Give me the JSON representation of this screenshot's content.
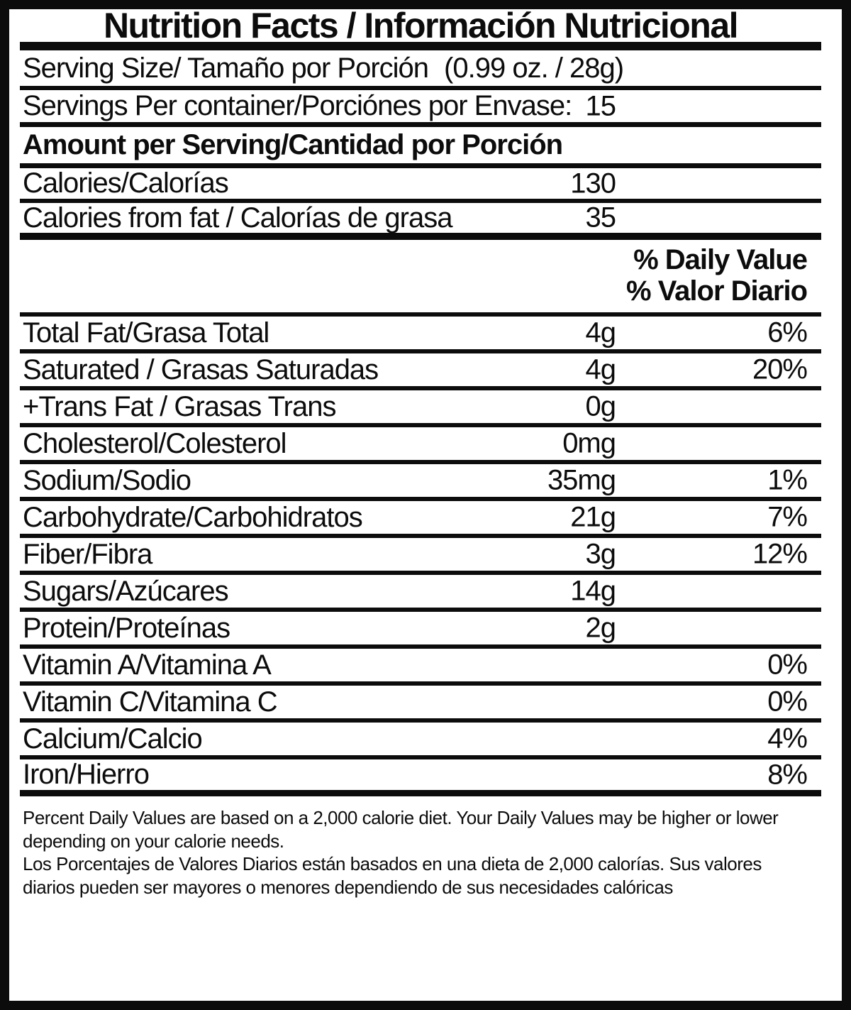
{
  "title": "Nutrition Facts / Información Nutricional",
  "serving": {
    "size_label": "Serving Size/ Tamaño por Porción",
    "size_value": "(0.99 oz. / 28g)",
    "per_container_label": "Servings Per container/Porciónes por Envase:",
    "per_container_value": "15"
  },
  "amount_per_serving_header": "Amount per Serving/Cantidad por Porción",
  "calories": {
    "label": "Calories/Calorías",
    "value": "130"
  },
  "calories_from_fat": {
    "label": "Calories from fat / Calorías de grasa",
    "value": "35"
  },
  "daily_value_header": {
    "line1": "% Daily Value",
    "line2": "% Valor Diario"
  },
  "nutrients": [
    {
      "label": "Total Fat/Grasa Total",
      "amount": "4g",
      "percent": "6%"
    },
    {
      "label": "Saturated / Grasas Saturadas",
      "amount": "4g",
      "percent": "20%"
    },
    {
      "label": "+Trans Fat / Grasas Trans",
      "amount": "0g",
      "percent": ""
    },
    {
      "label": "Cholesterol/Colesterol",
      "amount": "0mg",
      "percent": ""
    },
    {
      "label": "Sodium/Sodio",
      "amount": "35mg",
      "percent": "1%"
    },
    {
      "label": "Carbohydrate/Carbohidratos",
      "amount": "21g",
      "percent": "7%"
    },
    {
      "label": "Fiber/Fibra",
      "amount": "3g",
      "percent": "12%"
    },
    {
      "label": "Sugars/Azúcares",
      "amount": "14g",
      "percent": ""
    },
    {
      "label": "Protein/Proteínas",
      "amount": "2g",
      "percent": ""
    },
    {
      "label": "Vitamin A/Vitamina A",
      "amount": "",
      "percent": "0%"
    },
    {
      "label": "Vitamin C/Vitamina C",
      "amount": "",
      "percent": "0%"
    },
    {
      "label": "Calcium/Calcio",
      "amount": "",
      "percent": "4%"
    },
    {
      "label": "Iron/Hierro",
      "amount": "",
      "percent": "8%"
    }
  ],
  "footnotes": {
    "english": "Percent Daily Values are based on a 2,000 calorie diet. Your Daily Values may be higher or lower depending on your calorie needs.",
    "spanish": "Los Porcentajes de Valores Diarios están basados en una dieta de 2,000 calorías. Sus valores diarios pueden ser mayores o menores dependiendo de sus necesidades calóricas"
  },
  "colors": {
    "ink": "#0c0c0c",
    "background": "#ffffff"
  }
}
